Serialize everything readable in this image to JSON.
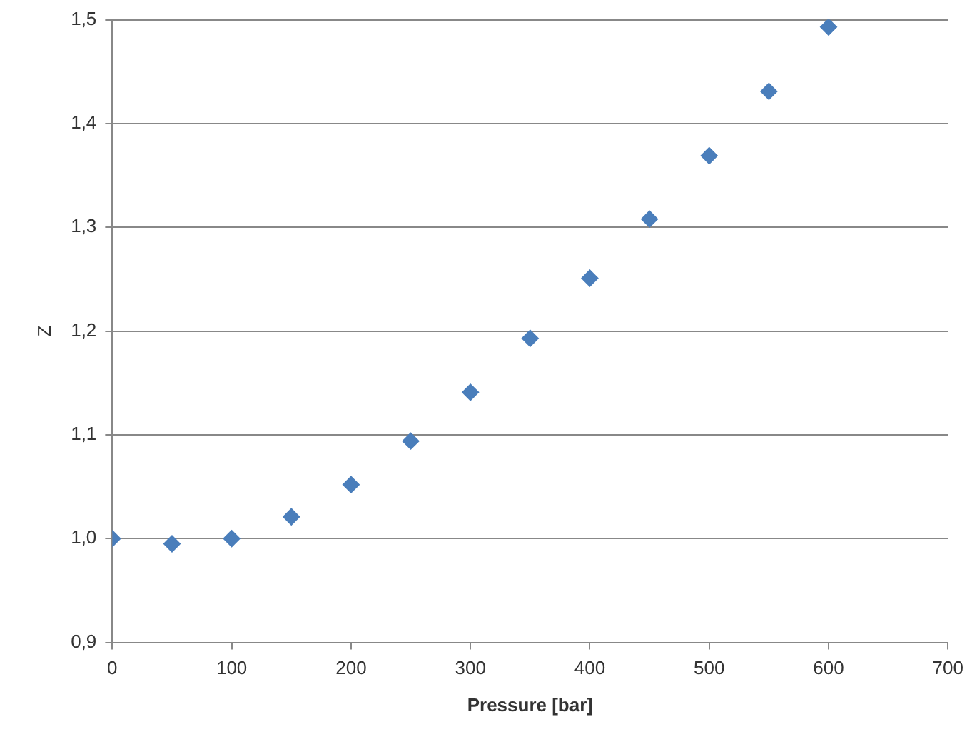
{
  "chart_data": {
    "type": "scatter",
    "xlabel": "Pressure [bar]",
    "ylabel": "Z",
    "x": [
      0,
      50,
      100,
      150,
      200,
      250,
      300,
      350,
      400,
      450,
      500,
      550,
      600
    ],
    "series": [
      {
        "color": "#4a7ebb",
        "values": [
          1.0,
          0.995,
          1.0,
          1.021,
          1.052,
          1.094,
          1.141,
          1.193,
          1.251,
          1.308,
          1.369,
          1.431,
          1.493
        ]
      }
    ],
    "xlim": [
      0,
      700
    ],
    "xticks": [
      0,
      100,
      200,
      300,
      400,
      500,
      600,
      700
    ],
    "ylim": [
      0.9,
      1.5
    ],
    "yticks": [
      {
        "value": 0.9,
        "label": "0,9"
      },
      {
        "value": 1.0,
        "label": "1,0"
      },
      {
        "value": 1.1,
        "label": "1,1"
      },
      {
        "value": 1.2,
        "label": "1,2"
      },
      {
        "value": 1.3,
        "label": "1,3"
      },
      {
        "value": 1.4,
        "label": "1,4"
      },
      {
        "value": 1.5,
        "label": "1,5"
      }
    ],
    "grid": "y",
    "legend": false,
    "marker": "diamond"
  }
}
